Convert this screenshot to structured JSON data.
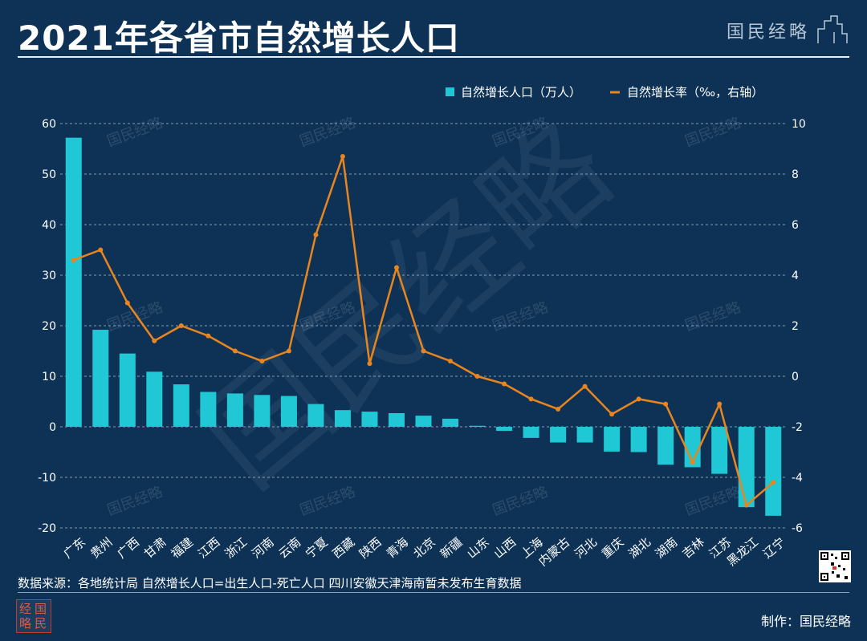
{
  "title": "2021年各省市自然增长人口",
  "brand": "国民经略",
  "source_note": "数据来源：各地统计局 自然增长人口=出生人口-死亡人口 四川安徽天津海南暂未发布生育数据",
  "maker": "制作：国民经略",
  "seal_chars": [
    "经",
    "国",
    "略",
    "民"
  ],
  "watermark": "国民经略",
  "colors": {
    "background": "#0d3256",
    "bar": "#20c8d6",
    "line": "#e8851e",
    "text": "#ffffff",
    "grid": "#b8c6d4"
  },
  "chart_data": {
    "type": "bar+line",
    "categories": [
      "广东",
      "贵州",
      "广西",
      "甘肃",
      "福建",
      "江西",
      "浙江",
      "河南",
      "云南",
      "宁夏",
      "西藏",
      "陕西",
      "青海",
      "北京",
      "新疆",
      "山东",
      "山西",
      "上海",
      "内蒙古",
      "河北",
      "重庆",
      "湖北",
      "湖南",
      "吉林",
      "江苏",
      "黑龙江",
      "辽宁"
    ],
    "series": [
      {
        "name": "自然增长人口（万人）",
        "type": "bar",
        "axis": "left",
        "values": [
          57.2,
          19.2,
          14.5,
          10.9,
          8.4,
          6.9,
          6.6,
          6.3,
          6.1,
          4.5,
          3.3,
          3.0,
          2.7,
          2.2,
          1.6,
          0.2,
          -0.8,
          -2.2,
          -3.1,
          -3.1,
          -4.9,
          -5.0,
          -7.5,
          -8.0,
          -9.3,
          -15.9,
          -17.6
        ]
      },
      {
        "name": "自然增长率（‰，右轴）",
        "type": "line",
        "axis": "right",
        "values": [
          4.6,
          5.0,
          2.9,
          1.4,
          2.0,
          1.6,
          1.0,
          0.6,
          1.0,
          5.6,
          8.7,
          0.5,
          4.3,
          1.0,
          0.6,
          0.0,
          -0.3,
          -0.9,
          -1.3,
          -0.4,
          -1.5,
          -0.9,
          -1.1,
          -3.4,
          -1.1,
          -5.1,
          -4.2
        ]
      }
    ],
    "left_axis": {
      "min": -20,
      "max": 60,
      "ticks": [
        60,
        50,
        40,
        30,
        20,
        10,
        0,
        -10,
        -20
      ]
    },
    "right_axis": {
      "min": -6,
      "max": 10,
      "ticks": [
        10,
        8,
        6,
        4,
        2,
        0,
        -2,
        -4,
        -6
      ]
    },
    "legend_position": "top-right",
    "grid": true
  }
}
